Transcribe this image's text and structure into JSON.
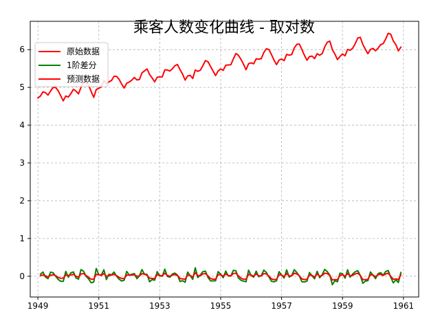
{
  "chart_data": {
    "type": "line",
    "title": "乘客人数变化曲线 - 取对数",
    "xlabel": "",
    "ylabel": "",
    "xlim": [
      1948.75,
      1961.5
    ],
    "ylim": [
      -0.55,
      6.75
    ],
    "x_ticks": [
      1949,
      1951,
      1953,
      1955,
      1957,
      1959,
      1961
    ],
    "x_tick_labels": [
      "1949",
      "1951",
      "1953",
      "1955",
      "1957",
      "1959",
      "1961"
    ],
    "y_ticks": [
      0,
      1,
      2,
      3,
      4,
      5,
      6
    ],
    "y_tick_labels": [
      "0",
      "1",
      "2",
      "3",
      "4",
      "5",
      "6"
    ],
    "grid": true,
    "legend": "top-left",
    "colors": {
      "original": "#ff0000",
      "diff": "#008000",
      "predicted": "#ff0000"
    },
    "series": [
      {
        "name": "原始数据",
        "color": "#ff0000",
        "x_start": 1949,
        "x_step": 0.083333,
        "values": [
          4.718,
          4.771,
          4.883,
          4.86,
          4.796,
          4.905,
          4.997,
          4.997,
          4.913,
          4.779,
          4.644,
          4.771,
          4.745,
          4.836,
          4.949,
          4.905,
          4.828,
          5.004,
          5.136,
          5.136,
          5.063,
          4.89,
          4.736,
          4.942,
          4.977,
          5.011,
          5.182,
          5.094,
          5.147,
          5.182,
          5.293,
          5.293,
          5.215,
          5.088,
          4.984,
          5.112,
          5.142,
          5.193,
          5.263,
          5.198,
          5.209,
          5.384,
          5.438,
          5.489,
          5.342,
          5.252,
          5.147,
          5.268,
          5.278,
          5.278,
          5.464,
          5.46,
          5.434,
          5.493,
          5.576,
          5.606,
          5.468,
          5.352,
          5.193,
          5.303,
          5.318,
          5.236,
          5.46,
          5.425,
          5.455,
          5.576,
          5.71,
          5.68,
          5.557,
          5.434,
          5.313,
          5.434,
          5.489,
          5.451,
          5.587,
          5.595,
          5.598,
          5.753,
          5.897,
          5.849,
          5.743,
          5.613,
          5.468,
          5.628,
          5.649,
          5.624,
          5.759,
          5.746,
          5.763,
          5.924,
          6.023,
          6.004,
          5.872,
          5.724,
          5.602,
          5.724,
          5.753,
          5.707,
          5.875,
          5.852,
          5.872,
          6.045,
          6.142,
          6.146,
          6.001,
          5.849,
          5.72,
          5.817,
          5.829,
          5.762,
          5.892,
          5.852,
          5.894,
          6.075,
          6.196,
          6.225,
          6.001,
          5.883,
          5.737,
          5.82,
          5.886,
          5.835,
          6.006,
          5.981,
          6.04,
          6.157,
          6.306,
          6.326,
          6.138,
          6.009,
          5.892,
          6.004,
          6.033,
          5.969,
          6.038,
          6.133,
          6.157,
          6.282,
          6.433,
          6.407,
          6.23,
          6.133,
          5.966,
          6.068
        ]
      },
      {
        "name": "1阶差分",
        "color": "#008000",
        "x_start": 1949.083333,
        "x_step": 0.083333,
        "values": [
          0.052,
          0.112,
          -0.023,
          -0.064,
          0.109,
          0.092,
          0.0,
          -0.084,
          -0.134,
          -0.135,
          0.127,
          -0.026,
          0.091,
          0.113,
          -0.044,
          -0.077,
          0.176,
          0.132,
          0.0,
          -0.073,
          -0.173,
          -0.154,
          0.206,
          0.035,
          0.034,
          0.171,
          -0.088,
          0.053,
          0.035,
          0.111,
          0.0,
          -0.078,
          -0.127,
          -0.104,
          0.128,
          0.03,
          0.051,
          0.07,
          -0.065,
          0.011,
          0.175,
          0.054,
          0.051,
          -0.147,
          -0.09,
          -0.105,
          0.121,
          0.01,
          0.0,
          0.186,
          -0.004,
          -0.026,
          0.059,
          0.083,
          0.03,
          -0.138,
          -0.116,
          -0.159,
          0.11,
          0.015,
          -0.082,
          0.224,
          -0.035,
          0.03,
          0.121,
          0.134,
          -0.03,
          -0.123,
          -0.123,
          -0.121,
          0.121,
          0.055,
          -0.038,
          0.136,
          0.008,
          0.003,
          0.155,
          0.144,
          -0.048,
          -0.106,
          -0.13,
          -0.145,
          0.16,
          0.021,
          -0.025,
          0.135,
          -0.013,
          0.017,
          0.161,
          0.099,
          -0.019,
          -0.132,
          -0.148,
          -0.122,
          0.122,
          0.029,
          -0.046,
          0.168,
          -0.023,
          0.02,
          0.173,
          0.097,
          0.004,
          -0.145,
          -0.152,
          -0.129,
          0.097,
          0.012,
          -0.067,
          0.13,
          -0.04,
          0.042,
          0.181,
          0.121,
          0.029,
          -0.224,
          -0.118,
          -0.146,
          0.083,
          0.066,
          -0.051,
          0.171,
          -0.025,
          0.059,
          0.117,
          0.149,
          0.02,
          -0.188,
          -0.129,
          -0.117,
          0.112,
          0.029,
          -0.064,
          0.069,
          0.095,
          0.024,
          0.125,
          0.151,
          -0.026,
          -0.177,
          -0.097,
          -0.167,
          0.102
        ]
      },
      {
        "name": "预测数据",
        "color": "#ff0000",
        "x_start": 1949.083333,
        "x_step": 0.083333,
        "values": [
          0.01,
          0.035,
          0.012,
          -0.02,
          0.025,
          0.04,
          0.015,
          -0.03,
          -0.055,
          -0.05,
          0.03,
          0.02,
          0.035,
          0.05,
          0.0,
          -0.02,
          0.06,
          0.07,
          0.02,
          -0.03,
          -0.08,
          -0.08,
          0.05,
          0.04,
          0.02,
          0.07,
          0.0,
          0.015,
          0.03,
          0.05,
          0.015,
          -0.03,
          -0.06,
          -0.06,
          0.03,
          0.03,
          0.03,
          0.04,
          0.0,
          0.005,
          0.07,
          0.05,
          0.03,
          -0.05,
          -0.06,
          -0.06,
          0.04,
          0.02,
          0.01,
          0.08,
          0.02,
          0.0,
          0.03,
          0.045,
          0.02,
          -0.06,
          -0.07,
          -0.08,
          0.03,
          0.02,
          -0.02,
          0.09,
          0.02,
          0.015,
          0.06,
          0.07,
          0.01,
          -0.06,
          -0.08,
          -0.08,
          0.04,
          0.04,
          0.0,
          0.06,
          0.02,
          0.01,
          0.07,
          0.08,
          0.01,
          -0.05,
          -0.08,
          -0.08,
          0.05,
          0.03,
          0.0,
          0.06,
          0.01,
          0.01,
          0.07,
          0.06,
          0.005,
          -0.07,
          -0.09,
          -0.08,
          0.04,
          0.03,
          -0.01,
          0.07,
          0.01,
          0.01,
          0.08,
          0.06,
          0.01,
          -0.07,
          -0.09,
          -0.08,
          0.03,
          0.02,
          -0.02,
          0.06,
          0.0,
          0.02,
          0.08,
          0.07,
          0.02,
          -0.1,
          -0.09,
          -0.09,
          0.02,
          0.04,
          0.0,
          0.07,
          0.01,
          0.025,
          0.06,
          0.08,
          0.02,
          -0.09,
          -0.09,
          -0.08,
          0.04,
          0.03,
          -0.01,
          0.04,
          0.05,
          0.02,
          0.06,
          0.08,
          0.0,
          -0.08,
          -0.07,
          -0.09,
          0.04
        ]
      }
    ]
  }
}
